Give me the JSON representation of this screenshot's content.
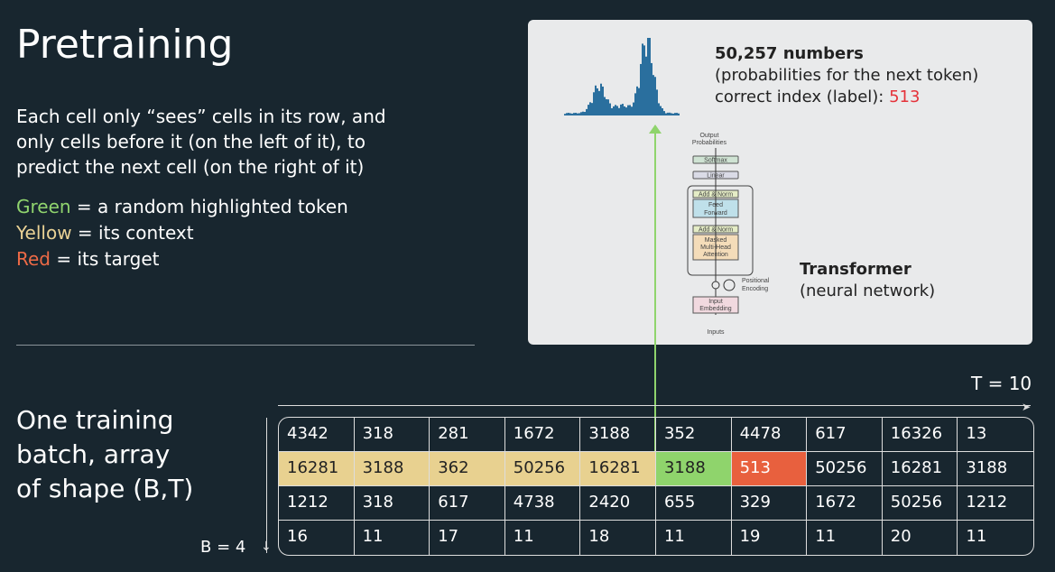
{
  "title": "Pretraining",
  "description": "Each cell only “sees” cells in its row, and only cells before it (on the left of it), to predict the next cell (on the right of it)",
  "legend": [
    {
      "word": "Green",
      "rest": " = a random highlighted token"
    },
    {
      "word": "Yellow",
      "rest": " = its context"
    },
    {
      "word": "Red",
      "rest": " = its target"
    }
  ],
  "batch_label": "One training batch, array of shape (B,T)",
  "T_label": "T = 10",
  "B_label": "B = 4",
  "panel": {
    "count": "50,257 numbers",
    "probs": "(probabilities for the next token)",
    "label_prefix": "correct index (label): ",
    "label_value": "513",
    "transformer": "Transformer",
    "nn": "(neural network)",
    "diagram": {
      "output": "Output",
      "probabilities": "Probabilities",
      "softmax": "Softmax",
      "linear": "Linear",
      "addnorm": "Add & Norm",
      "ff1": "Feed",
      "ff2": "Forward",
      "mha1": "Masked",
      "mha2": "Multi-Head",
      "mha3": "Attention",
      "pos1": "Positional",
      "pos2": "Encoding",
      "emb1": "Input",
      "emb2": "Embedding",
      "inputs": "Inputs"
    }
  },
  "colors": {
    "green": "#8fd46c",
    "yellow": "#e8d190",
    "red": "#e8603e"
  },
  "table": [
    [
      "4342",
      "318",
      "281",
      "1672",
      "3188",
      "352",
      "4478",
      "617",
      "16326",
      "13"
    ],
    [
      "16281",
      "3188",
      "362",
      "50256",
      "16281",
      "3188",
      "513",
      "50256",
      "16281",
      "3188"
    ],
    [
      "1212",
      "318",
      "617",
      "4738",
      "2420",
      "655",
      "329",
      "1672",
      "50256",
      "1212"
    ],
    [
      "16",
      "11",
      "17",
      "11",
      "18",
      "11",
      "19",
      "11",
      "20",
      "11"
    ]
  ],
  "highlight": {
    "row": 1,
    "context_end": 4,
    "token": 5,
    "target": 6
  }
}
